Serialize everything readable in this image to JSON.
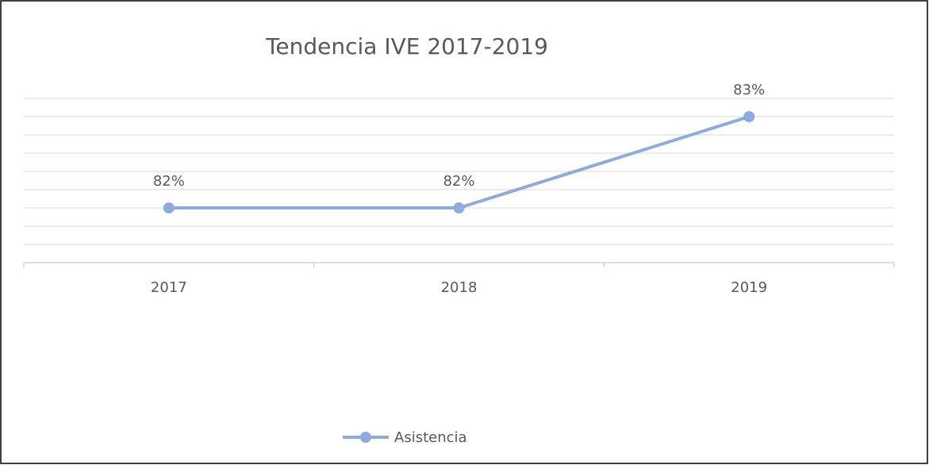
{
  "chart_data": {
    "type": "line",
    "title": "Tendencia IVE 2017-2019",
    "categories": [
      "2017",
      "2018",
      "2019"
    ],
    "series": [
      {
        "name": "Asistencia",
        "color": "#8faadc",
        "values": [
          82,
          82,
          83
        ],
        "value_labels": [
          "82%",
          "82%",
          "83%"
        ]
      }
    ],
    "ylim": [
      81.4,
      83.2
    ],
    "yticks": [
      81.4,
      81.6,
      81.8,
      82.0,
      82.2,
      82.4,
      82.6,
      82.8,
      83.0,
      83.2
    ],
    "grid": true,
    "legend": "bottom"
  }
}
